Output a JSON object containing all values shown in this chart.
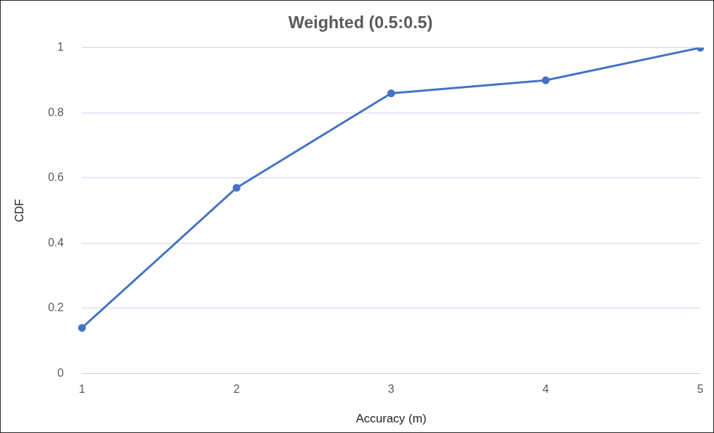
{
  "chart_data": {
    "type": "line",
    "title": "Weighted (0.5:0.5)",
    "xlabel": "Accuracy (m)",
    "ylabel": "CDF",
    "categories": [
      "1",
      "2",
      "3",
      "4",
      "5"
    ],
    "series": [
      {
        "color": "#4472c4",
        "values": [
          0.14,
          0.57,
          0.86,
          0.9,
          1
        ]
      }
    ],
    "ylim": [
      0,
      1
    ],
    "yticks": [
      0,
      0.2,
      0.4,
      0.6,
      0.8,
      1
    ],
    "grid": "y",
    "legend": false,
    "marker": "circle",
    "line_style": "solid"
  }
}
